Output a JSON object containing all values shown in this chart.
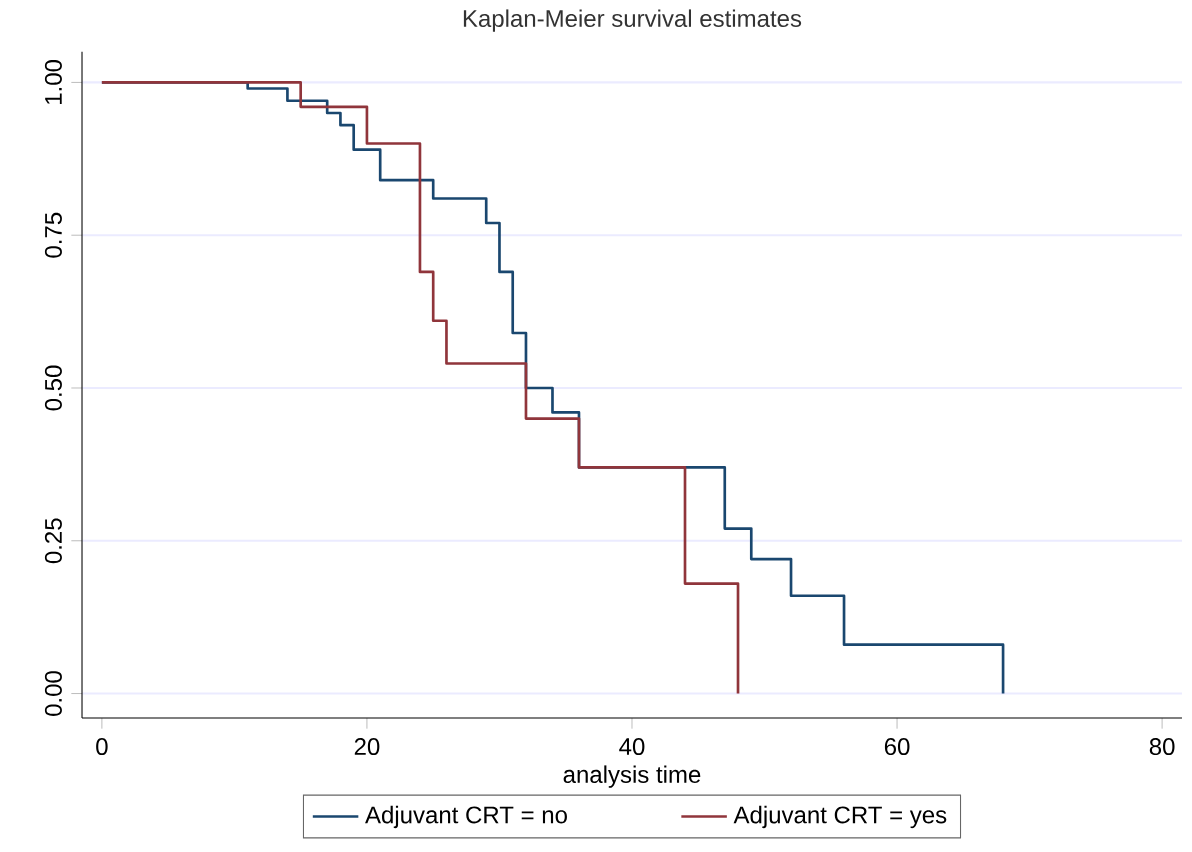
{
  "chart_data": {
    "type": "step",
    "title": "Kaplan-Meier survival estimates",
    "xlabel": "analysis time",
    "series": [
      {
        "name": "Adjuvant CRT  = no",
        "color": "#1a476f",
        "x": [
          0,
          11,
          14,
          17,
          18,
          19,
          21,
          25,
          29,
          30,
          31,
          32,
          34,
          36,
          47,
          49,
          52,
          56,
          68
        ],
        "values": [
          1,
          0.99,
          0.97,
          0.95,
          0.93,
          0.89,
          0.84,
          0.81,
          0.77,
          0.69,
          0.59,
          0.5,
          0.46,
          0.37,
          0.27,
          0.22,
          0.16,
          0.08,
          0
        ]
      },
      {
        "name": "Adjuvant CRT  = yes",
        "color": "#90353b",
        "x": [
          0,
          15,
          20,
          24,
          25,
          26,
          32,
          36,
          44,
          48
        ],
        "values": [
          1,
          0.96,
          0.9,
          0.69,
          0.61,
          0.54,
          0.45,
          0.37,
          0.18,
          0
        ]
      }
    ],
    "xlim": [
      -1.5,
      81.5
    ],
    "ylim": [
      -0.04,
      1.05
    ],
    "xticks": [
      0,
      20,
      40,
      60,
      80
    ],
    "yticks": [
      {
        "value": 0,
        "label": "0.00"
      },
      {
        "value": 0.25,
        "label": "0.25"
      },
      {
        "value": 0.5,
        "label": "0.50"
      },
      {
        "value": 0.75,
        "label": "0.75"
      },
      {
        "value": 1,
        "label": "1.00"
      }
    ],
    "grid": "y",
    "legend": "bottom"
  }
}
